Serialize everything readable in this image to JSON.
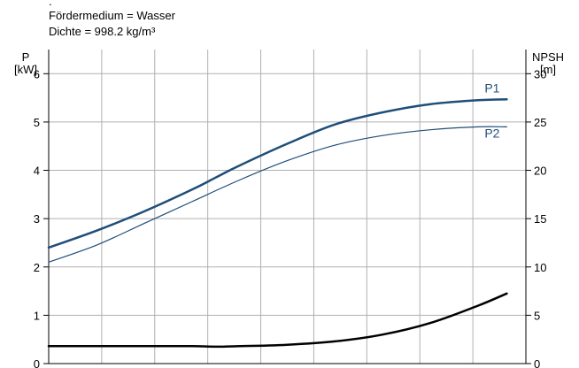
{
  "header": {
    "dot": ".",
    "medium": "Fördermedium = Wasser",
    "density": "Dichte = 998.2 kg/m³"
  },
  "chart_data": {
    "type": "line",
    "title": "",
    "left_axis": {
      "label": "P",
      "unit": "[kW]",
      "ylim": [
        0,
        6.5
      ],
      "ticks": [
        0,
        1,
        2,
        3,
        4,
        5,
        6
      ]
    },
    "right_axis": {
      "label": "NPSH",
      "unit": "[m]",
      "ylim": [
        0,
        32.5
      ],
      "ticks": [
        0,
        5,
        10,
        15,
        20,
        25,
        30
      ]
    },
    "x_axis": {
      "label": "",
      "xlim": [
        0,
        10
      ],
      "tick_labels_shown": false
    },
    "grid": true,
    "series": [
      {
        "name": "P1",
        "axis": "left",
        "color": "#1f4e79",
        "weight": "thick",
        "x": [
          0,
          1,
          2,
          3,
          3.5,
          4,
          5,
          6,
          7,
          8,
          9,
          9.6
        ],
        "y": [
          2.4,
          2.75,
          3.15,
          3.6,
          3.85,
          4.1,
          4.55,
          4.95,
          5.2,
          5.37,
          5.45,
          5.47
        ]
      },
      {
        "name": "P2",
        "axis": "left",
        "color": "#1f4e79",
        "weight": "thin",
        "x": [
          0,
          1,
          2,
          3,
          4,
          5,
          6,
          7,
          8,
          9,
          9.6
        ],
        "y": [
          2.1,
          2.45,
          2.9,
          3.35,
          3.8,
          4.2,
          4.52,
          4.72,
          4.84,
          4.9,
          4.9
        ]
      },
      {
        "name": "",
        "axis": "right",
        "color": "#000000",
        "weight": "thick",
        "x": [
          0,
          1,
          2,
          3,
          3.5,
          4,
          5,
          6,
          7,
          8,
          9,
          9.6
        ],
        "y": [
          1.8,
          1.8,
          1.8,
          1.8,
          1.75,
          1.8,
          1.95,
          2.3,
          3.0,
          4.2,
          6.0,
          7.25
        ]
      }
    ],
    "curve_labels": [
      {
        "text": "P1",
        "series": "P1"
      },
      {
        "text": "P2",
        "series": "P2"
      }
    ]
  }
}
